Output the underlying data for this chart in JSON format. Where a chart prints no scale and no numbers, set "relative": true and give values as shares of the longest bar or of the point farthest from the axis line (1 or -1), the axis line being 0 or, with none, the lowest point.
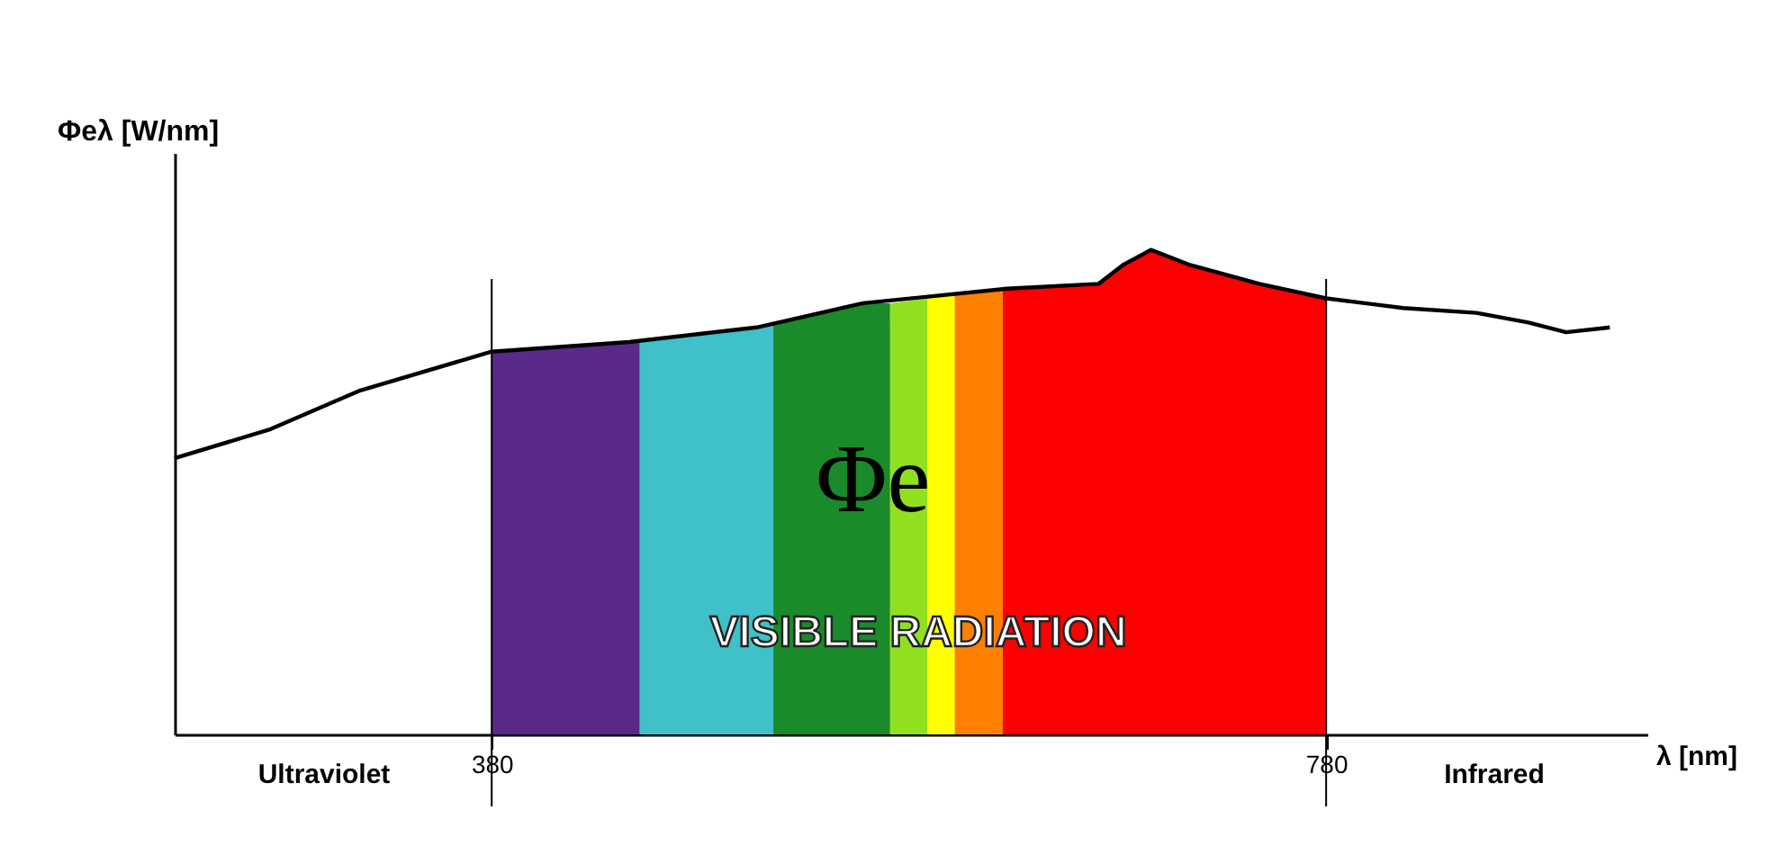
{
  "chart_data": {
    "type": "line",
    "relative": true,
    "xlabel": "λ [nm]",
    "ylabel": "Φeλ [W/nm]",
    "xlim": [
      228,
      934
    ],
    "xticks": [
      380,
      780
    ],
    "series": [
      {
        "type": "area",
        "color": "#5a2a8a",
        "x": [
          380,
          446,
          451
        ],
        "values": [
          0.79,
          0.81,
          0.81
        ]
      },
      {
        "type": "area",
        "color": "#40c0c8",
        "x": [
          451,
          507,
          515
        ],
        "values": [
          0.81,
          0.84,
          0.85
        ]
      },
      {
        "type": "area",
        "color": "#1a8a2a",
        "x": [
          515,
          558,
          571
        ],
        "values": [
          0.85,
          0.89,
          0.89
        ]
      },
      {
        "type": "area",
        "color": "#90e020",
        "x": [
          571,
          589
        ],
        "values": [
          0.89,
          0.9
        ]
      },
      {
        "type": "area",
        "color": "#ffff00",
        "x": [
          589,
          602
        ],
        "values": [
          0.9,
          0.91
        ]
      },
      {
        "type": "area",
        "color": "#ff8000",
        "x": [
          602,
          625
        ],
        "values": [
          0.91,
          0.92
        ]
      },
      {
        "type": "area",
        "color": "#ff0000",
        "x": [
          625,
          627,
          671,
          683,
          696,
          714,
          748,
          780
        ],
        "values": [
          0.92,
          0.92,
          0.93,
          0.97,
          1,
          0.97,
          0.93,
          0.9
        ]
      },
      {
        "color": "#000000",
        "x": [
          228,
          274,
          317,
          380,
          446,
          507,
          558,
          627,
          671,
          683,
          696,
          714,
          748,
          780,
          817,
          852,
          877,
          895,
          916
        ],
        "values": [
          0.57,
          0.63,
          0.71,
          0.79,
          0.81,
          0.84,
          0.89,
          0.92,
          0.93,
          0.97,
          1,
          0.97,
          0.93,
          0.9,
          0.88,
          0.87,
          0.85,
          0.83,
          0.84
        ]
      }
    ],
    "ref_lines": [
      {
        "axis": "x",
        "value": 380,
        "label": null
      },
      {
        "axis": "x",
        "value": 780,
        "label": null
      }
    ],
    "annotations": [
      "Φe",
      "VISIBLE RADIATION",
      "Ultraviolet",
      "Infrared"
    ]
  }
}
